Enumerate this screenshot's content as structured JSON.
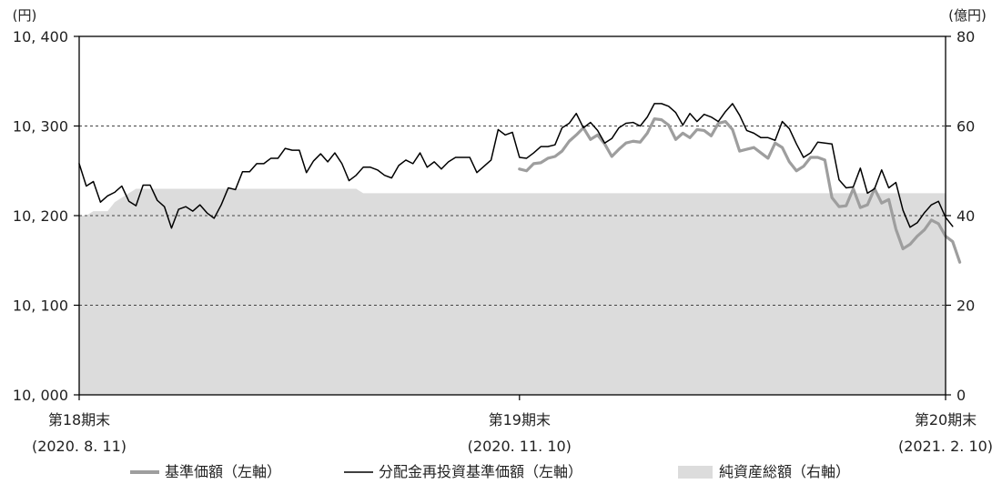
{
  "chart_data": {
    "type": "line",
    "left_axis": {
      "unit": "(円)",
      "ylim": [
        10000,
        10400
      ],
      "ticks": [
        10000,
        10100,
        10200,
        10300,
        10400
      ],
      "tick_labels": [
        "10, 000",
        "10, 100",
        "10, 200",
        "10, 300",
        "10, 400"
      ]
    },
    "right_axis": {
      "unit": "(億円)",
      "ylim": [
        0,
        80
      ],
      "ticks": [
        0,
        20,
        40,
        60,
        80
      ],
      "tick_labels": [
        "0",
        "20",
        "40",
        "60",
        "80"
      ]
    },
    "grid": "dashed horizontal at 10,100 / 10,200 / 10,300",
    "x_ticks": [
      {
        "idx": 0,
        "label1": "第18期末",
        "label2": "(2020. 8. 11)"
      },
      {
        "idx": 62,
        "label1": "第19期末",
        "label2": "(2020. 11. 10)"
      },
      {
        "idx": 122,
        "label1": "第20期末",
        "label2": "(2021. 2. 10)"
      }
    ],
    "legend_position": "bottom",
    "legend": [
      {
        "key": "nav",
        "label": "基準価額（左軸）",
        "color": "#9e9e9e"
      },
      {
        "key": "reinvested",
        "label": "分配金再投資基準価額（左軸）",
        "color": "#000000"
      },
      {
        "key": "assets",
        "label": "純資産総額（右軸）",
        "color": "#dcdcdc"
      }
    ],
    "series": [
      {
        "key": "assets",
        "axis": "right",
        "kind": "area",
        "color": "#dcdcdc",
        "values": [
          40,
          40,
          41,
          41,
          41,
          43,
          44,
          45,
          46,
          46,
          46,
          46,
          46,
          46,
          46,
          46,
          46,
          46,
          46,
          46,
          46,
          46,
          46,
          46,
          46,
          46,
          46,
          46,
          46,
          46,
          46,
          46,
          46,
          46,
          46,
          46,
          46,
          46,
          46,
          46,
          45,
          45,
          45,
          45,
          45,
          45,
          45,
          45,
          45,
          45,
          45,
          45,
          45,
          45,
          45,
          45,
          45,
          45,
          45,
          45,
          45,
          45,
          45,
          45,
          45,
          45,
          45,
          45,
          45,
          45,
          45,
          45,
          45,
          45,
          45,
          45,
          45,
          45,
          45,
          45,
          45,
          45,
          45,
          45,
          45,
          45,
          45,
          45,
          45,
          45,
          45,
          45,
          45,
          45,
          45,
          45,
          45,
          45,
          45,
          45,
          45,
          45,
          45,
          45,
          45,
          45,
          45,
          45,
          45,
          45,
          45,
          45,
          45,
          45,
          45,
          45,
          45,
          45,
          45,
          45,
          45,
          45,
          45
        ]
      },
      {
        "key": "reinvested",
        "axis": "left",
        "kind": "line",
        "color": "#000000",
        "values": [
          10258,
          10233,
          10238,
          10215,
          10222,
          10226,
          10233,
          10216,
          10211,
          10234,
          10234,
          10217,
          10210,
          10186,
          10207,
          10210,
          10205,
          10212,
          10203,
          10197,
          10212,
          10231,
          10229,
          10249,
          10249,
          10258,
          10258,
          10264,
          10264,
          10275,
          10273,
          10273,
          10248,
          10261,
          10269,
          10260,
          10270,
          10258,
          10239,
          10245,
          10254,
          10254,
          10251,
          10245,
          10242,
          10256,
          10262,
          10258,
          10270,
          10254,
          10260,
          10252,
          10260,
          10265,
          10265,
          10265,
          10248,
          10255,
          10262,
          10296,
          10290,
          10293,
          10265,
          10264,
          10270,
          10277,
          10277,
          10279,
          10298,
          10303,
          10314,
          10298,
          10304,
          10295,
          10281,
          10286,
          10298,
          10303,
          10304,
          10300,
          10310,
          10325,
          10325,
          10322,
          10315,
          10301,
          10314,
          10305,
          10313,
          10310,
          10305,
          10316,
          10325,
          10312,
          10295,
          10292,
          10287,
          10287,
          10284,
          10305,
          10297,
          10280,
          10265,
          10270,
          10282,
          10281,
          10280,
          10240,
          10231,
          10232,
          10253,
          10225,
          10230,
          10251,
          10231,
          10237,
          10206,
          10187,
          10192,
          10203,
          10212,
          10216,
          10198,
          10188
        ]
      },
      {
        "key": "nav",
        "axis": "left",
        "kind": "line",
        "color": "#9e9e9e",
        "start_index": 62,
        "values": [
          10252,
          10250,
          10258,
          10259,
          10264,
          10266,
          10272,
          10283,
          10290,
          10298,
          10285,
          10290,
          10280,
          10266,
          10274,
          10281,
          10283,
          10282,
          10292,
          10308,
          10307,
          10301,
          10285,
          10292,
          10287,
          10296,
          10295,
          10289,
          10303,
          10305,
          10296,
          10272,
          10274,
          10276,
          10270,
          10264,
          10281,
          10276,
          10260,
          10250,
          10255,
          10265,
          10265,
          10262,
          10220,
          10210,
          10211,
          10230,
          10209,
          10212,
          10230,
          10214,
          10218,
          10185,
          10163,
          10168,
          10177,
          10184,
          10195,
          10191,
          10177,
          10171,
          10148
        ]
      }
    ]
  }
}
